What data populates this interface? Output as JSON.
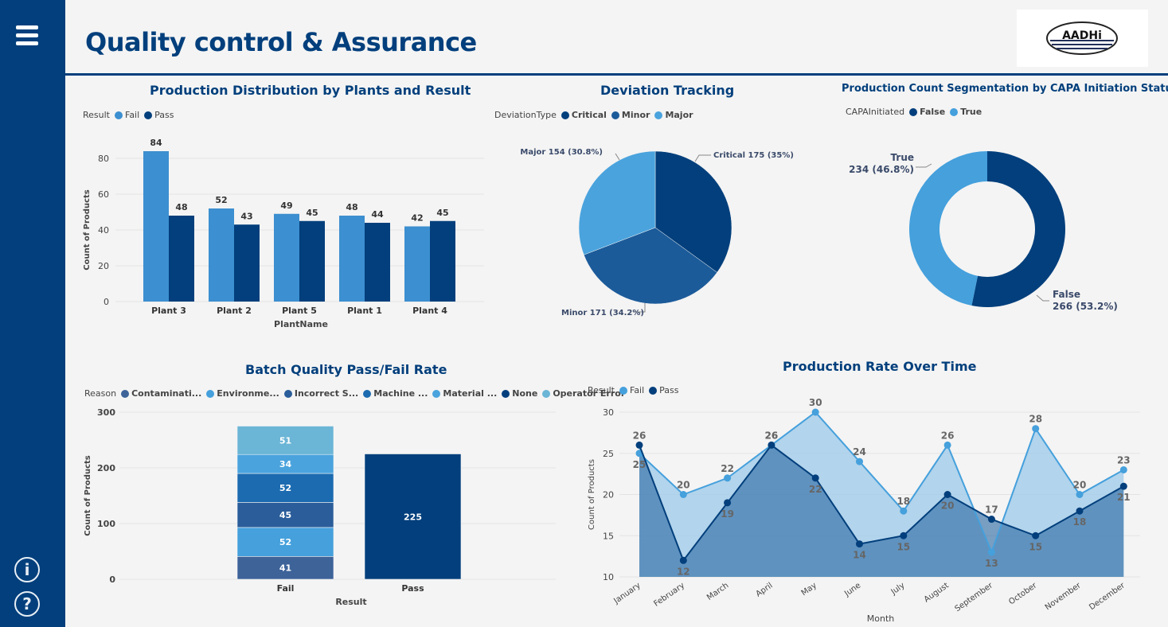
{
  "header": {
    "title": "Quality control & Assurance",
    "logo_text": "AADHi"
  },
  "sidebar": {
    "menu_icon": "hamburger-menu-icon",
    "info_icon": "info-icon",
    "help_icon": "help-icon"
  },
  "colors": {
    "fail": "#3c8fd0",
    "pass": "#023f7c",
    "critical": "#023f7c",
    "minor": "#1c5b9a",
    "major": "#4aa3dd",
    "false": "#023f7c",
    "true": "#45a0dc"
  },
  "visuals": {
    "production_distribution": {
      "title": "Production Distribution by Plants and Result",
      "legend_title": "Result",
      "legend": [
        "Fail",
        "Pass"
      ],
      "chart_data": {
        "type": "bar",
        "categories": [
          "Plant 3",
          "Plant 2",
          "Plant 5",
          "Plant 1",
          "Plant 4"
        ],
        "series": [
          {
            "name": "Fail",
            "values": [
              84,
              52,
              49,
              48,
              42
            ]
          },
          {
            "name": "Pass",
            "values": [
              48,
              43,
              45,
              44,
              45
            ]
          }
        ],
        "xlabel": "PlantName",
        "ylabel": "Count of Products",
        "ylim": [
          0,
          90
        ],
        "yticks": [
          "0",
          "20",
          "40",
          "60",
          "80"
        ]
      }
    },
    "deviation_tracking": {
      "title": "Deviation Tracking",
      "legend_title": "DeviationType",
      "legend": [
        "Critical",
        "Minor",
        "Major"
      ],
      "chart_data": {
        "type": "pie",
        "slices": [
          {
            "name": "Critical",
            "value": 175,
            "label": "Critical 175 (35%)"
          },
          {
            "name": "Minor",
            "value": 171,
            "label": "Minor 171 (34.2%)"
          },
          {
            "name": "Major",
            "value": 154,
            "label": "Major 154 (30.8%)"
          }
        ]
      }
    },
    "capa_segmentation": {
      "title": "Production Count Segmentation by CAPA Initiation Status",
      "legend_title": "CAPAInitiated",
      "legend": [
        "False",
        "True"
      ],
      "chart_data": {
        "type": "pie",
        "slices": [
          {
            "name": "False",
            "value": 266,
            "label_name": "False",
            "label_value": "266 (53.2%)"
          },
          {
            "name": "True",
            "value": 234,
            "label_name": "True",
            "label_value": "234 (46.8%)"
          }
        ]
      }
    },
    "batch_quality": {
      "title": "Batch Quality Pass/Fail Rate",
      "legend_title": "Reason",
      "legend": [
        "Contaminati...",
        "Environme...",
        "Incorrect S...",
        "Machine ...",
        "Material ...",
        "None",
        "Operator Error"
      ],
      "legend_colors": [
        "#3d6399",
        "#45a0dc",
        "#2a5d9a",
        "#1c6bb0",
        "#4aa3dd",
        "#023f7c",
        "#6bb5d6"
      ],
      "chart_data": {
        "type": "bar",
        "stacked": true,
        "categories": [
          "Fail",
          "Pass"
        ],
        "series": [
          {
            "name": "Contaminati...",
            "values": [
              41,
              0
            ]
          },
          {
            "name": "Environme...",
            "values": [
              52,
              0
            ]
          },
          {
            "name": "Incorrect S...",
            "values": [
              45,
              0
            ]
          },
          {
            "name": "Machine ...",
            "values": [
              52,
              0
            ]
          },
          {
            "name": "Material ...",
            "values": [
              34,
              0
            ]
          },
          {
            "name": "Operator Error",
            "values": [
              51,
              0
            ]
          },
          {
            "name": "None",
            "values": [
              0,
              225
            ]
          }
        ],
        "xlabel": "Result",
        "ylabel": "Count of Products",
        "ylim": [
          0,
          300
        ],
        "yticks": [
          "0",
          "100",
          "200",
          "300"
        ]
      }
    },
    "production_rate": {
      "title": "Production Rate Over Time",
      "legend_title": "Result",
      "legend": [
        "Fail",
        "Pass"
      ],
      "chart_data": {
        "type": "area",
        "categories": [
          "January",
          "February",
          "March",
          "April",
          "May",
          "June",
          "July",
          "August",
          "September",
          "October",
          "November",
          "December"
        ],
        "series": [
          {
            "name": "Fail",
            "values": [
              25,
              20,
              22,
              26,
              30,
              24,
              18,
              26,
              13,
              28,
              20,
              23
            ]
          },
          {
            "name": "Pass",
            "values": [
              26,
              12,
              19,
              26,
              22,
              14,
              15,
              20,
              17,
              15,
              18,
              21
            ]
          }
        ],
        "xlabel": "Month",
        "ylabel": "Count of Products",
        "ylim": [
          10,
          30
        ],
        "yticks": [
          "10",
          "15",
          "20",
          "25",
          "30"
        ]
      }
    }
  }
}
